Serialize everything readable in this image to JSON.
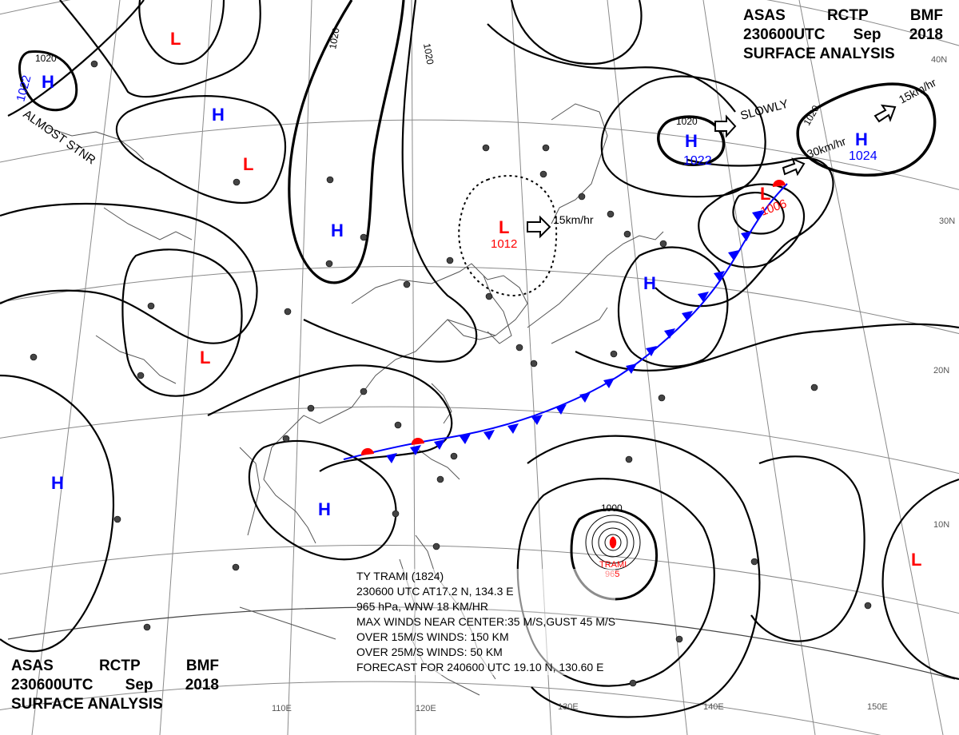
{
  "header_top": {
    "agency": [
      "ASAS",
      "RCTP",
      "BMF"
    ],
    "time": [
      "230600UTC",
      "Sep",
      "2018"
    ],
    "title": "SURFACE ANALYSIS"
  },
  "header_bottom": {
    "agency": [
      "ASAS",
      "RCTP",
      "BMF"
    ],
    "time": [
      "230600UTC",
      "Sep",
      "2018"
    ],
    "title": "SURFACE ANALYSIS"
  },
  "typhoon": {
    "lines": [
      "TY  TRAMI  (1824)",
      "230600 UTC  AT17.2 N, 134.3 E",
      "965 hPa, WNW  18 KM/HR",
      "MAX WINDS NEAR CENTER:35 M/S,GUST 45 M/S",
      "OVER 15M/S WINDS: 150 KM",
      "OVER 25M/S WINDS: 50 KM",
      "FORECAST FOR 240600 UTC  19.10 N, 130.60 E"
    ],
    "map_name": "TRAMI",
    "map_pressure": "965"
  },
  "pressure_centers": [
    {
      "type": "H",
      "value": "1022",
      "note": "ALMOST STNR"
    },
    {
      "type": "L",
      "value": ""
    },
    {
      "type": "H",
      "value": ""
    },
    {
      "type": "L",
      "value": ""
    },
    {
      "type": "H",
      "value": ""
    },
    {
      "type": "L",
      "value": "1012",
      "motion": "15km/hr"
    },
    {
      "type": "L",
      "value": ""
    },
    {
      "type": "H",
      "value": "1022",
      "motion": "SLOWLY"
    },
    {
      "type": "H",
      "value": "1024",
      "motion": "30km/hr",
      "motion2": "15km/hr"
    },
    {
      "type": "L",
      "value": "1006"
    },
    {
      "type": "H",
      "value": ""
    },
    {
      "type": "H",
      "value": ""
    },
    {
      "type": "H",
      "value": ""
    },
    {
      "type": "L",
      "value": ""
    }
  ],
  "isobar_labels": [
    "1020",
    "1020",
    "1020",
    "1020",
    "1020",
    "1000"
  ],
  "lat_labels": [
    "40N",
    "30N",
    "20N",
    "10N"
  ],
  "lon_labels": [
    "110E",
    "120E",
    "130E",
    "140E",
    "150E"
  ],
  "colors": {
    "high": "#0000ff",
    "low": "#ff0000",
    "front_cold": "#0000ff",
    "front_warm": "#ff0000",
    "isobar": "#000000",
    "grid": "#8a8a8a",
    "coast": "#555555"
  }
}
